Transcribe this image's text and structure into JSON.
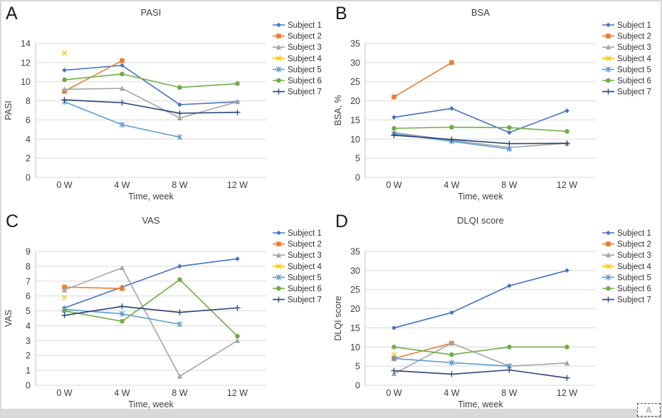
{
  "figure": {
    "x_axis_label": "Time, week",
    "categories": [
      "0 W",
      "4 W",
      "8 W",
      "12 W"
    ],
    "legend_labels": [
      "Subject 1",
      "Subject 2",
      "Subject 3",
      "Subject 4",
      "Subject 5",
      "Subject 6",
      "Subject 7"
    ],
    "palette": {
      "subject1": "#4472C4",
      "subject2": "#ED7D31",
      "subject3": "#A5A5A5",
      "subject4": "#FFC000",
      "subject5": "#5B9BD5",
      "subject6": "#70AD47",
      "subject7": "#264478",
      "gridline": "#d9d9d9",
      "axis": "#c6c6c6",
      "text": "#3d3d3d",
      "bottom_strip": "#d9d9d9"
    }
  },
  "corner_icon": {
    "letter": "A"
  },
  "chart_data": [
    {
      "type": "line",
      "panel_label": "A",
      "title": "PASI",
      "xlabel": "Time, week",
      "ylabel": "PASI",
      "categories": [
        "0 W",
        "4 W",
        "8 W",
        "12 W"
      ],
      "ylim": [
        0,
        14
      ],
      "ytick_step": 2,
      "grid": true,
      "legend_position": "right",
      "series": [
        {
          "name": "Subject 1",
          "color": "#4472C4",
          "marker": "diamond",
          "values": [
            11.2,
            11.7,
            7.6,
            7.9
          ]
        },
        {
          "name": "Subject 2",
          "color": "#ED7D31",
          "marker": "square",
          "values": [
            9.0,
            12.2,
            null,
            null
          ]
        },
        {
          "name": "Subject 3",
          "color": "#A5A5A5",
          "marker": "triangle",
          "values": [
            9.2,
            9.3,
            6.2,
            7.9
          ]
        },
        {
          "name": "Subject 4",
          "color": "#FFC000",
          "marker": "x",
          "values": [
            13.0,
            null,
            null,
            null
          ]
        },
        {
          "name": "Subject 5",
          "color": "#5B9BD5",
          "marker": "star",
          "values": [
            7.9,
            5.5,
            4.2,
            null
          ]
        },
        {
          "name": "Subject 6",
          "color": "#70AD47",
          "marker": "circle",
          "values": [
            10.2,
            10.8,
            9.4,
            9.8
          ]
        },
        {
          "name": "Subject 7",
          "color": "#264478",
          "marker": "plus",
          "values": [
            8.1,
            7.8,
            6.7,
            6.8
          ]
        }
      ]
    },
    {
      "type": "line",
      "panel_label": "B",
      "title": "BSA",
      "xlabel": "Time, week",
      "ylabel": "BSA, %",
      "categories": [
        "0 W",
        "4 W",
        "8 W",
        "12 W"
      ],
      "ylim": [
        0,
        35
      ],
      "ytick_step": 5,
      "grid": true,
      "legend_position": "right",
      "series": [
        {
          "name": "Subject 1",
          "color": "#4472C4",
          "marker": "diamond",
          "values": [
            15.7,
            18.0,
            11.7,
            17.4
          ]
        },
        {
          "name": "Subject 2",
          "color": "#ED7D31",
          "marker": "square",
          "values": [
            21.0,
            30.0,
            null,
            null
          ]
        },
        {
          "name": "Subject 3",
          "color": "#A5A5A5",
          "marker": "triangle",
          "values": [
            11.7,
            9.7,
            7.8,
            8.9
          ]
        },
        {
          "name": "Subject 4",
          "color": "#FFC000",
          "marker": "x",
          "values": [
            null,
            null,
            null,
            null
          ]
        },
        {
          "name": "Subject 5",
          "color": "#5B9BD5",
          "marker": "star",
          "values": [
            11.4,
            9.4,
            7.4,
            null
          ]
        },
        {
          "name": "Subject 6",
          "color": "#70AD47",
          "marker": "circle",
          "values": [
            12.8,
            13.1,
            13.0,
            12.0
          ]
        },
        {
          "name": "Subject 7",
          "color": "#264478",
          "marker": "plus",
          "values": [
            11.0,
            9.9,
            8.8,
            8.9
          ]
        }
      ]
    },
    {
      "type": "line",
      "panel_label": "C",
      "title": "VAS",
      "xlabel": "Time, week",
      "ylabel": "VAS",
      "categories": [
        "0 W",
        "4 W",
        "8 W",
        "12 W"
      ],
      "ylim": [
        0,
        9
      ],
      "ytick_step": 1,
      "grid": true,
      "legend_position": "right",
      "series": [
        {
          "name": "Subject 1",
          "color": "#4472C4",
          "marker": "diamond",
          "values": [
            5.2,
            6.6,
            8.0,
            8.5
          ]
        },
        {
          "name": "Subject 2",
          "color": "#ED7D31",
          "marker": "square",
          "values": [
            6.6,
            6.5,
            null,
            null
          ]
        },
        {
          "name": "Subject 3",
          "color": "#A5A5A5",
          "marker": "triangle",
          "values": [
            6.4,
            7.9,
            0.6,
            3.0
          ]
        },
        {
          "name": "Subject 4",
          "color": "#FFC000",
          "marker": "x",
          "values": [
            5.9,
            null,
            null,
            null
          ]
        },
        {
          "name": "Subject 5",
          "color": "#5B9BD5",
          "marker": "star",
          "values": [
            5.1,
            4.8,
            4.1,
            null
          ]
        },
        {
          "name": "Subject 6",
          "color": "#70AD47",
          "marker": "circle",
          "values": [
            5.0,
            4.3,
            7.1,
            3.3
          ]
        },
        {
          "name": "Subject 7",
          "color": "#264478",
          "marker": "plus",
          "values": [
            4.7,
            5.3,
            4.9,
            5.2
          ]
        }
      ]
    },
    {
      "type": "line",
      "panel_label": "D",
      "title": "DLQI score",
      "xlabel": "Time, week",
      "ylabel": "DLQI score",
      "categories": [
        "0 W",
        "4 W",
        "8 W",
        "12 W"
      ],
      "ylim": [
        0,
        35
      ],
      "ytick_step": 5,
      "grid": true,
      "legend_position": "right",
      "series": [
        {
          "name": "Subject 1",
          "color": "#4472C4",
          "marker": "diamond",
          "values": [
            15.0,
            19.0,
            26.0,
            30.0
          ]
        },
        {
          "name": "Subject 2",
          "color": "#ED7D31",
          "marker": "square",
          "values": [
            7.0,
            11.0,
            null,
            null
          ]
        },
        {
          "name": "Subject 3",
          "color": "#A5A5A5",
          "marker": "triangle",
          "values": [
            3.0,
            11.0,
            5.0,
            5.8
          ]
        },
        {
          "name": "Subject 4",
          "color": "#FFC000",
          "marker": "x",
          "values": [
            8.0,
            null,
            null,
            null
          ]
        },
        {
          "name": "Subject 5",
          "color": "#5B9BD5",
          "marker": "star",
          "values": [
            7.0,
            5.9,
            5.0,
            null
          ]
        },
        {
          "name": "Subject 6",
          "color": "#70AD47",
          "marker": "circle",
          "values": [
            10.0,
            8.0,
            10.0,
            10.0
          ]
        },
        {
          "name": "Subject 7",
          "color": "#264478",
          "marker": "plus",
          "values": [
            3.8,
            2.9,
            4.0,
            1.9
          ]
        }
      ]
    }
  ]
}
